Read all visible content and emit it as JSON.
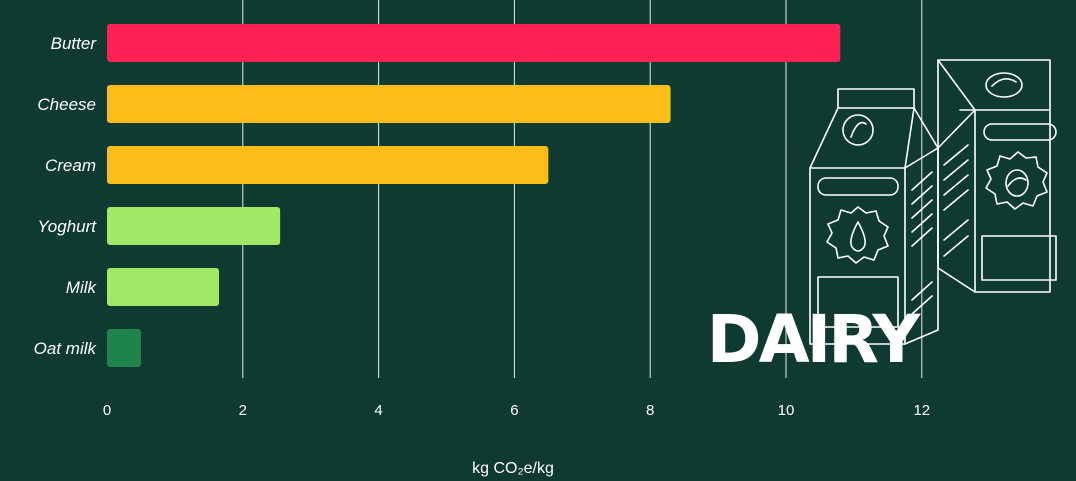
{
  "chart_data": {
    "type": "bar",
    "orientation": "horizontal",
    "categories": [
      "Butter",
      "Cheese",
      "Cream",
      "Yoghurt",
      "Milk",
      "Oat milk"
    ],
    "values": [
      10.8,
      8.3,
      6.5,
      2.55,
      1.65,
      0.5
    ],
    "bar_colors": [
      "#ff2156",
      "#fdbd18",
      "#fdbd18",
      "#a0e865",
      "#a0e865",
      "#1f844c"
    ],
    "xlabel": "kg CO₂e/kg",
    "ylabel": "",
    "xlim": [
      0,
      14
    ],
    "xticks": [
      "0",
      "2",
      "4",
      "6",
      "8",
      "10",
      "12"
    ],
    "grid": "vertical"
  },
  "illustration": {
    "label": "DAIRY",
    "icon": "milk-carton-icon"
  },
  "colors": {
    "background": "#0f3a31",
    "grid": "#e9e9e9",
    "text": "#ffffff"
  }
}
